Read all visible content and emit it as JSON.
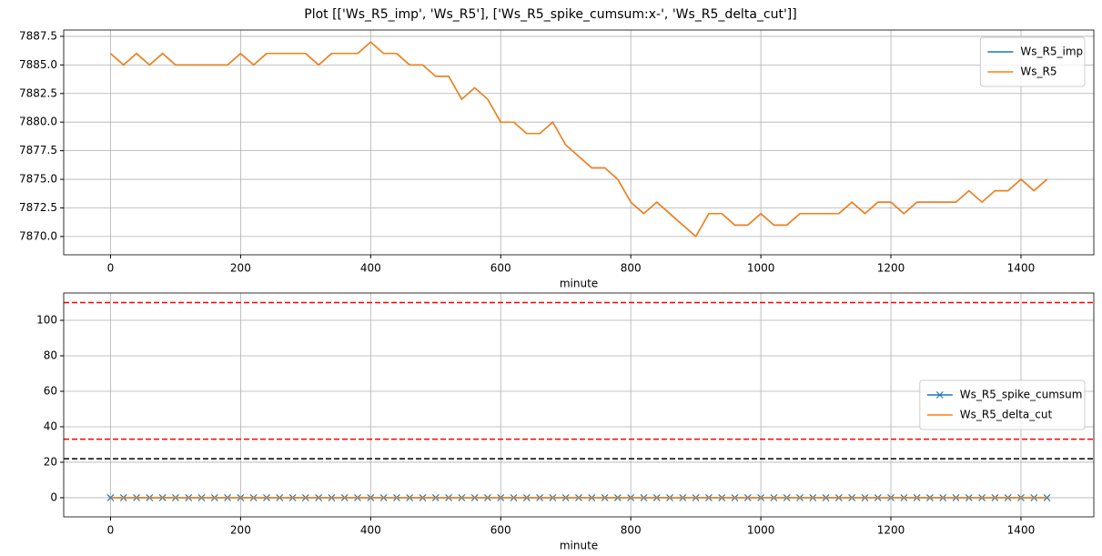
{
  "title": "Plot [['Ws_R5_imp', 'Ws_R5'], ['Ws_R5_spike_cumsum:x-', 'Ws_R5_delta_cut']]",
  "chart_data": [
    {
      "type": "line",
      "xlabel": "minute",
      "grid": true,
      "legend": "upper right",
      "xlim": [
        -72,
        1512
      ],
      "xticks": [
        0,
        200,
        400,
        600,
        800,
        1000,
        1200,
        1400
      ],
      "ylim": [
        7868.4,
        7888.05
      ],
      "yticks": [
        {
          "value": 7870,
          "label": "7870.0"
        },
        {
          "value": 7872.5,
          "label": "7872.5"
        },
        {
          "value": 7875,
          "label": "7875.0"
        },
        {
          "value": 7877.5,
          "label": "7877.5"
        },
        {
          "value": 7880,
          "label": "7880.0"
        },
        {
          "value": 7882.5,
          "label": "7882.5"
        },
        {
          "value": 7885,
          "label": "7885.0"
        },
        {
          "value": 7887.5,
          "label": "7887.5"
        }
      ],
      "x": [
        0,
        20,
        40,
        60,
        80,
        100,
        120,
        140,
        160,
        180,
        200,
        220,
        240,
        260,
        280,
        300,
        320,
        340,
        360,
        380,
        400,
        420,
        440,
        460,
        480,
        500,
        520,
        540,
        560,
        580,
        600,
        620,
        640,
        660,
        680,
        700,
        720,
        740,
        760,
        780,
        800,
        820,
        840,
        860,
        880,
        900,
        920,
        940,
        960,
        980,
        1000,
        1020,
        1040,
        1060,
        1080,
        1100,
        1120,
        1140,
        1160,
        1180,
        1200,
        1220,
        1240,
        1260,
        1280,
        1300,
        1320,
        1340,
        1360,
        1380,
        1400,
        1420,
        1440
      ],
      "series": [
        {
          "name": "Ws_R5_imp",
          "color": "#1f77b4",
          "values": [
            7886,
            7885,
            7886,
            7885,
            7886,
            7885,
            7885,
            7885,
            7885,
            7885,
            7886,
            7885,
            7886,
            7886,
            7886,
            7886,
            7885,
            7886,
            7886,
            7886,
            7887,
            7886,
            7886,
            7885,
            7885,
            7884,
            7884,
            7882,
            7883,
            7882,
            7880,
            7880,
            7879,
            7879,
            7880,
            7878,
            7877,
            7876,
            7876,
            7875,
            7873,
            7872,
            7873,
            7872,
            7871,
            7870,
            7872,
            7872,
            7871,
            7871,
            7872,
            7871,
            7871,
            7872,
            7872,
            7872,
            7872,
            7873,
            7872,
            7873,
            7873,
            7872,
            7873,
            7873,
            7873,
            7873,
            7874,
            7873,
            7874,
            7874,
            7875,
            7874,
            7875
          ]
        },
        {
          "name": "Ws_R5",
          "color": "#ff7f0e",
          "values": [
            7886,
            7885,
            7886,
            7885,
            7886,
            7885,
            7885,
            7885,
            7885,
            7885,
            7886,
            7885,
            7886,
            7886,
            7886,
            7886,
            7885,
            7886,
            7886,
            7886,
            7887,
            7886,
            7886,
            7885,
            7885,
            7884,
            7884,
            7882,
            7883,
            7882,
            7880,
            7880,
            7879,
            7879,
            7880,
            7878,
            7877,
            7876,
            7876,
            7875,
            7873,
            7872,
            7873,
            7872,
            7871,
            7870,
            7872,
            7872,
            7871,
            7871,
            7872,
            7871,
            7871,
            7872,
            7872,
            7872,
            7872,
            7873,
            7872,
            7873,
            7873,
            7872,
            7873,
            7873,
            7873,
            7873,
            7874,
            7873,
            7874,
            7874,
            7875,
            7874,
            7875
          ]
        }
      ]
    },
    {
      "type": "line",
      "xlabel": "minute",
      "grid": true,
      "legend": "center right",
      "xlim": [
        -72,
        1512
      ],
      "xticks": [
        0,
        200,
        400,
        600,
        800,
        1000,
        1200,
        1400
      ],
      "ylim": [
        -10.8,
        115.4
      ],
      "yticks": [
        0,
        20,
        40,
        60,
        80,
        100
      ],
      "hlines": [
        {
          "value": 110,
          "color": "#ff0000"
        },
        {
          "value": 33,
          "color": "#ff0000"
        },
        {
          "value": 22,
          "color": "#000000"
        }
      ],
      "x": [
        0,
        20,
        40,
        60,
        80,
        100,
        120,
        140,
        160,
        180,
        200,
        220,
        240,
        260,
        280,
        300,
        320,
        340,
        360,
        380,
        400,
        420,
        440,
        460,
        480,
        500,
        520,
        540,
        560,
        580,
        600,
        620,
        640,
        660,
        680,
        700,
        720,
        740,
        760,
        780,
        800,
        820,
        840,
        860,
        880,
        900,
        920,
        940,
        960,
        980,
        1000,
        1020,
        1040,
        1060,
        1080,
        1100,
        1120,
        1140,
        1160,
        1180,
        1200,
        1220,
        1240,
        1260,
        1280,
        1300,
        1320,
        1340,
        1360,
        1380,
        1400,
        1420,
        1440
      ],
      "series": [
        {
          "name": "Ws_R5_spike_cumsum",
          "color": "#1f77b4",
          "marker": "x",
          "values": [
            0,
            0,
            0,
            0,
            0,
            0,
            0,
            0,
            0,
            0,
            0,
            0,
            0,
            0,
            0,
            0,
            0,
            0,
            0,
            0,
            0,
            0,
            0,
            0,
            0,
            0,
            0,
            0,
            0,
            0,
            0,
            0,
            0,
            0,
            0,
            0,
            0,
            0,
            0,
            0,
            0,
            0,
            0,
            0,
            0,
            0,
            0,
            0,
            0,
            0,
            0,
            0,
            0,
            0,
            0,
            0,
            0,
            0,
            0,
            0,
            0,
            0,
            0,
            0,
            0,
            0,
            0,
            0,
            0,
            0,
            0,
            0,
            0
          ]
        },
        {
          "name": "Ws_R5_delta_cut",
          "color": "#ff7f0e",
          "values": [
            0,
            0,
            0,
            0,
            0,
            0,
            0,
            0,
            0,
            0,
            0,
            0,
            0,
            0,
            0,
            0,
            0,
            0,
            0,
            0,
            0,
            0,
            0,
            0,
            0,
            0,
            0,
            0,
            0,
            0,
            0,
            0,
            0,
            0,
            0,
            0,
            0,
            0,
            0,
            0,
            0,
            0,
            0,
            0,
            0,
            0,
            0,
            0,
            0,
            0,
            0,
            0,
            0,
            0,
            0,
            0,
            0,
            0,
            0,
            0,
            0,
            0,
            0,
            0,
            0,
            0,
            0,
            0,
            0,
            0,
            0,
            0,
            0
          ]
        }
      ]
    }
  ]
}
